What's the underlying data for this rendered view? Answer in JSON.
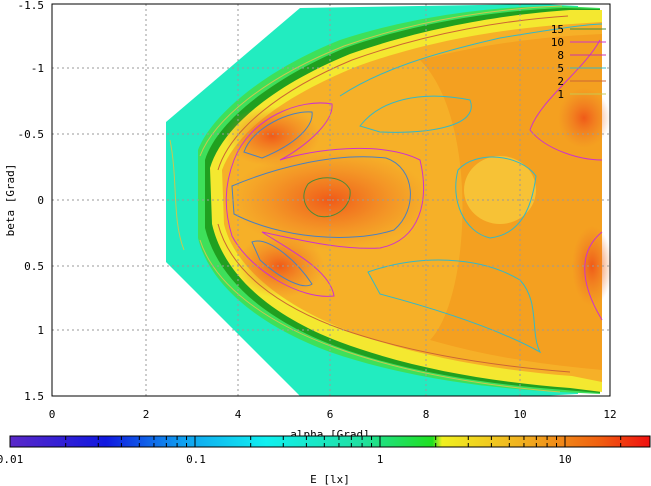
{
  "chart_data": {
    "type": "heatmap",
    "xlabel": "alpha [Grad]",
    "ylabel": "beta [Grad]",
    "xlim": [
      0,
      12
    ],
    "ylim": [
      1.5,
      -1.5
    ],
    "x_ticks": [
      "0",
      "2",
      "4",
      "6",
      "8",
      "10",
      "12"
    ],
    "y_ticks": [
      "-1.5",
      "-1",
      "-0.5",
      "0",
      "0.5",
      "1",
      "1.5"
    ],
    "grid": true,
    "legend_position": "top-right",
    "contours": [
      {
        "name": "15",
        "color": "#4a8a3a"
      },
      {
        "name": "10",
        "color": "#cc33cc"
      },
      {
        "name": "8",
        "color": "#cc33aa"
      },
      {
        "name": "5",
        "color": "#33b8c8"
      },
      {
        "name": "2",
        "color": "#cc6633"
      },
      {
        "name": "1",
        "color": "#c8c850"
      }
    ],
    "colorbar": {
      "label": "E [lx]",
      "scale": "log",
      "range": [
        0.01,
        25
      ],
      "ticks": [
        "0.01",
        "0.1",
        "1",
        "10"
      ]
    }
  }
}
